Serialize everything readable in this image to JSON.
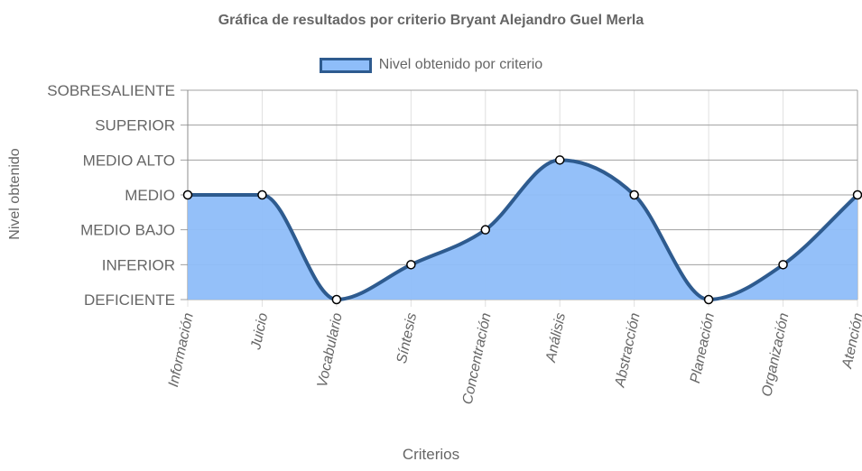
{
  "chart_data": {
    "type": "area",
    "title": "Gráfica de resultados por criterio Bryant Alejandro Guel Merla",
    "xlabel": "Criterios",
    "ylabel": "Nivel obtenido",
    "y_levels": [
      "DEFICIENTE",
      "INFERIOR",
      "MEDIO BAJO",
      "MEDIO",
      "MEDIO ALTO",
      "SUPERIOR",
      "SOBRESALIENTE"
    ],
    "ylim": [
      0,
      6
    ],
    "categories": [
      "Información",
      "Juicio",
      "Vocabulario",
      "Síntesis",
      "Concentración",
      "Análisis",
      "Abstracción",
      "Planeación",
      "Organización",
      "Atención"
    ],
    "series": [
      {
        "name": "Nivel obtenido por criterio",
        "values": [
          3,
          3,
          0,
          1,
          2,
          4,
          3,
          0,
          1,
          3
        ]
      }
    ],
    "legend_position": "top",
    "grid": true,
    "colors": {
      "fill": "#8ebdf9",
      "line": "#2e5b8f",
      "point_fill": "#ffffff",
      "point_stroke": "#000000",
      "grid": "#e0e0e0",
      "grid_major": "#a0a0a0"
    }
  }
}
